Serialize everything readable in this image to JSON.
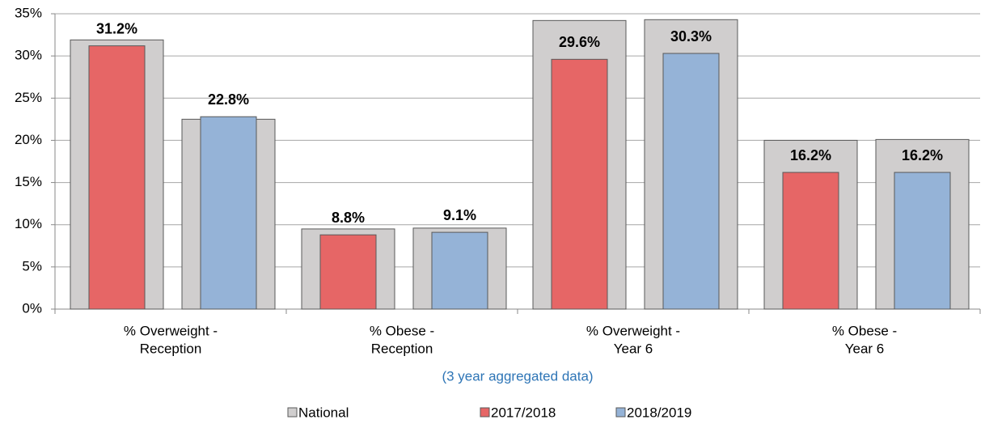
{
  "chart_data": {
    "type": "bar",
    "categories": [
      [
        "% Overweight -",
        "Reception"
      ],
      [
        "% Obese -",
        "Reception"
      ],
      [
        "% Overweight -",
        "Year 6"
      ],
      [
        "% Obese -",
        "Year 6"
      ]
    ],
    "note": "(3 year aggregated data)",
    "national_name": "National",
    "national_color": "#d0cece",
    "series": [
      {
        "name": "2017/2018",
        "color": "#e66666",
        "values": [
          31.2,
          8.8,
          29.6,
          16.2
        ],
        "value_labels": [
          "31.2%",
          "8.8%",
          "29.6%",
          "16.2%"
        ],
        "national": [
          31.9,
          9.5,
          34.2,
          20.0
        ]
      },
      {
        "name": "2018/2019",
        "color": "#95b3d7",
        "values": [
          22.8,
          9.1,
          30.3,
          16.2
        ],
        "value_labels": [
          "22.8%",
          "9.1%",
          "30.3%",
          "16.2%"
        ],
        "national": [
          22.5,
          9.6,
          34.3,
          20.1
        ]
      }
    ],
    "ylim": [
      0,
      35
    ],
    "yticks": [
      {
        "value": 0,
        "label": "0%"
      },
      {
        "value": 5,
        "label": "5%"
      },
      {
        "value": 10,
        "label": "10%"
      },
      {
        "value": 15,
        "label": "15%"
      },
      {
        "value": 20,
        "label": "20%"
      },
      {
        "value": 25,
        "label": "25%"
      },
      {
        "value": 30,
        "label": "30%"
      },
      {
        "value": 35,
        "label": "35%"
      }
    ],
    "grid": true
  }
}
